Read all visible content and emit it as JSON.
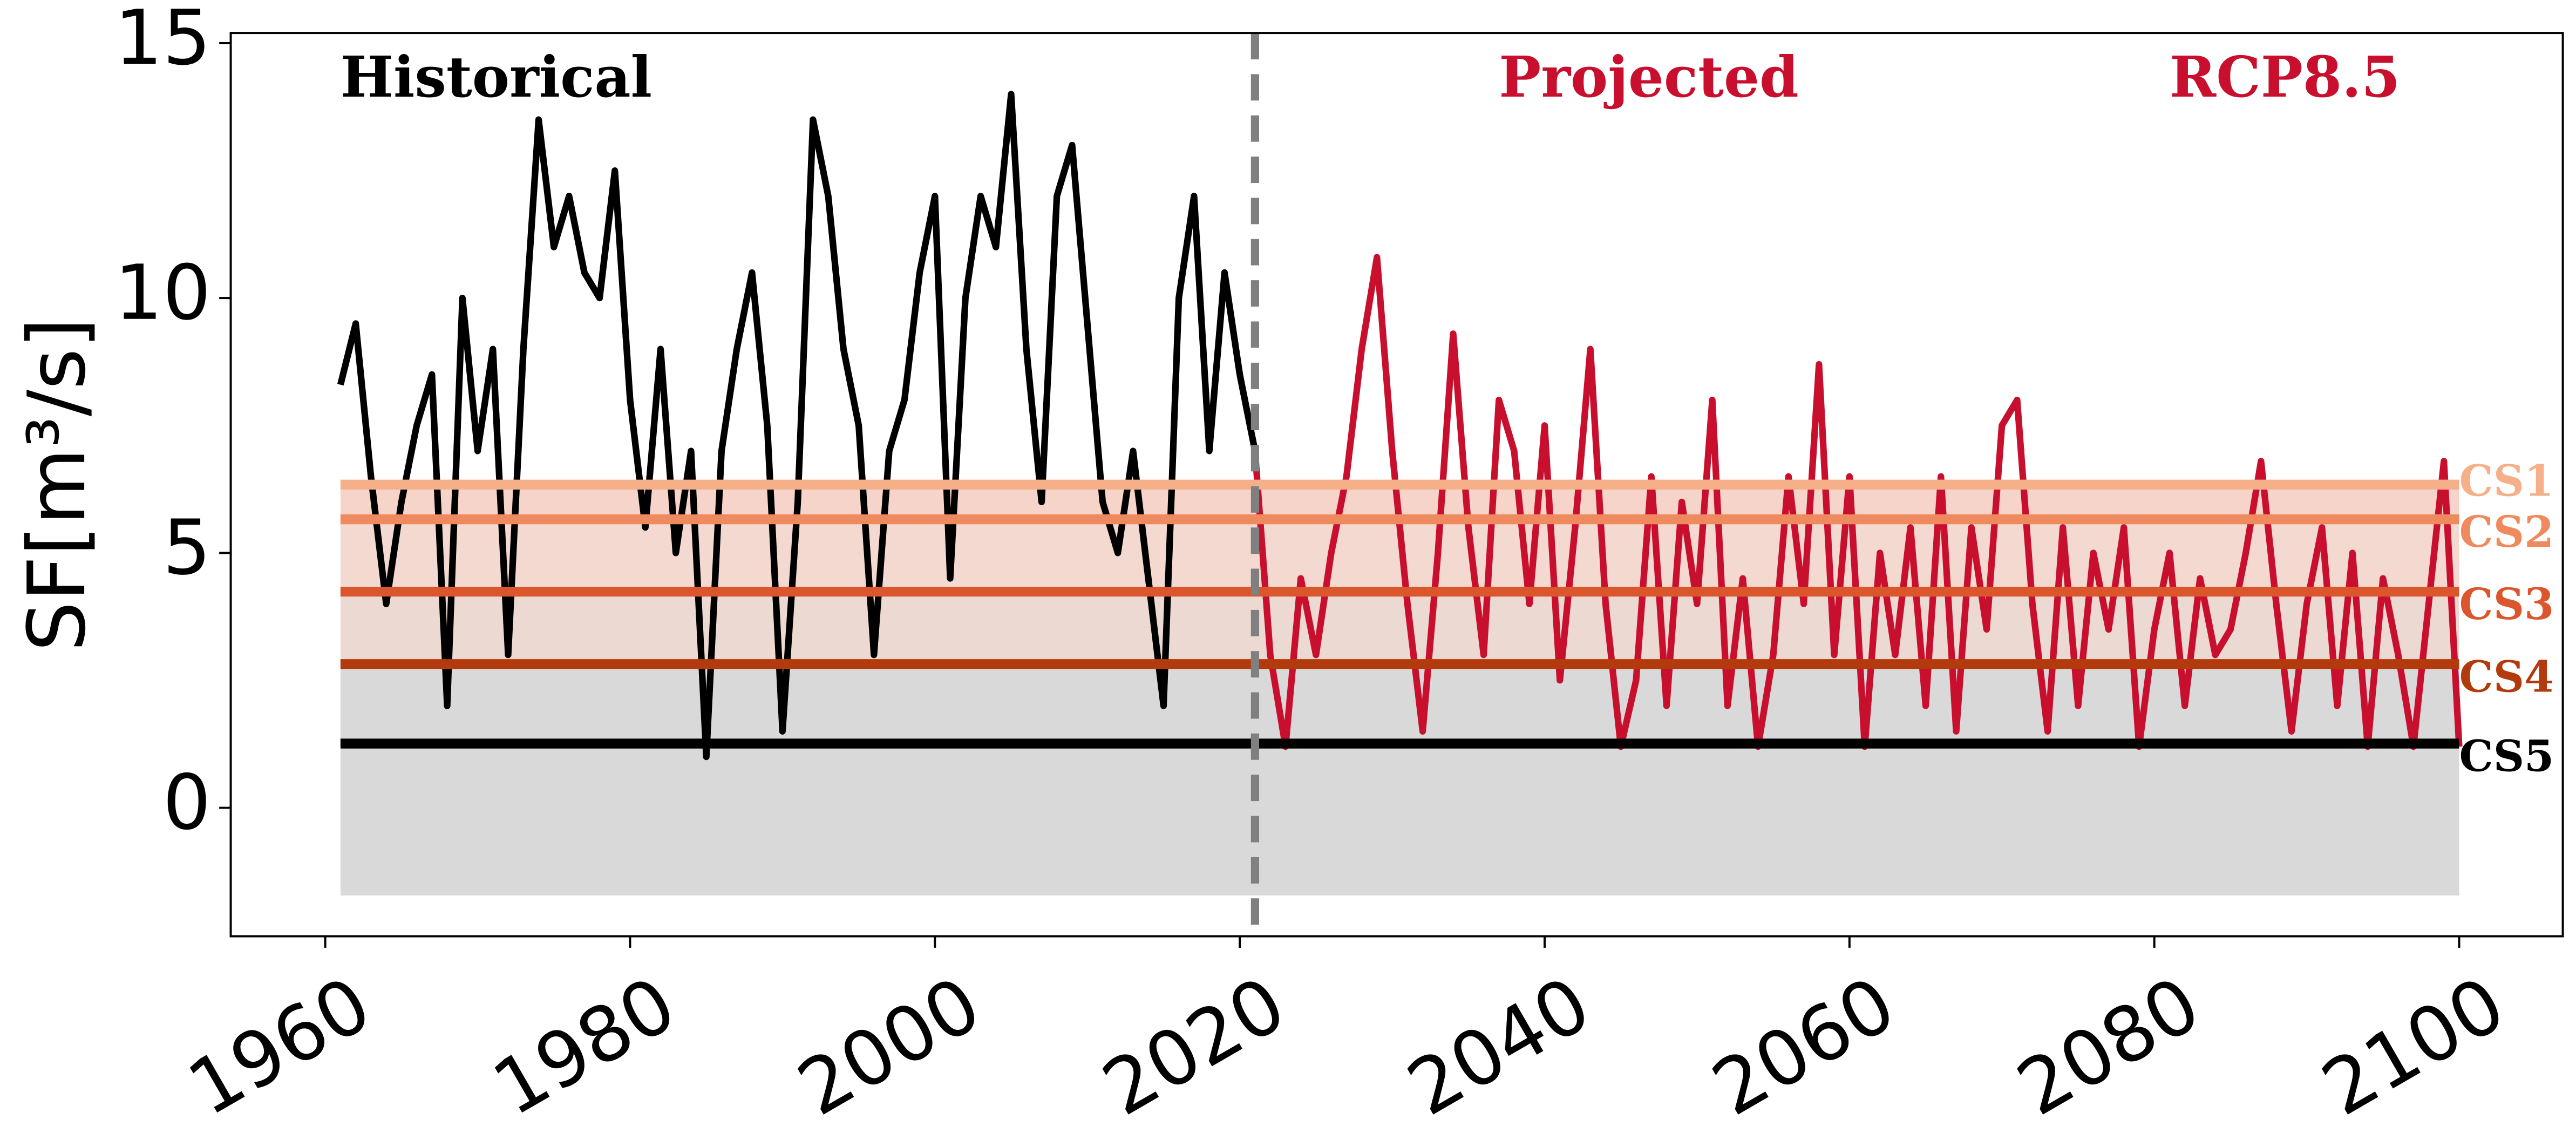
{
  "chart_data": {
    "type": "line",
    "y_label": "SF[m³/s]",
    "annotations": [
      {
        "text": "Historical",
        "x": 1961,
        "color": "#000000"
      },
      {
        "text": "Projected",
        "x": 2037,
        "color": "#c8102e"
      },
      {
        "text": "RCP8.5",
        "x": 2081,
        "color": "#c8102e"
      }
    ],
    "xlim": [
      1953.8,
      2106.8
    ],
    "ylim": [
      -2.52,
      15.2
    ],
    "xticks": [
      1960,
      1980,
      2000,
      2020,
      2040,
      2060,
      2080,
      2100
    ],
    "yticks": [
      0,
      5,
      10,
      15
    ],
    "grid": false,
    "band_floor": -1.72,
    "band_floor_color": "#d9d9d9",
    "thresholds": [
      {
        "name": "CS1",
        "value": 6.34,
        "color": "#f5b08a",
        "band_color": "#fbe5dc"
      },
      {
        "name": "CS2",
        "value": 5.66,
        "color": "#ef8a5f",
        "band_color": "#f6d4c9"
      },
      {
        "name": "CS3",
        "value": 4.24,
        "color": "#db562c",
        "band_color": "#f3d9cf"
      },
      {
        "name": "CS4",
        "value": 2.82,
        "color": "#b33a0c",
        "band_color": "#ebd9d2"
      },
      {
        "name": "CS5",
        "value": 1.26,
        "color": "#000000",
        "band_color": "#d9d9d9"
      }
    ],
    "divider_color": "#808080",
    "series": [
      {
        "name": "Historical",
        "color": "#000000",
        "x": [
          1961,
          1962,
          1963,
          1964,
          1965,
          1966,
          1967,
          1968,
          1969,
          1970,
          1971,
          1972,
          1973,
          1974,
          1975,
          1976,
          1977,
          1978,
          1979,
          1980,
          1981,
          1982,
          1983,
          1984,
          1985,
          1986,
          1987,
          1988,
          1989,
          1990,
          1991,
          1992,
          1993,
          1994,
          1995,
          1996,
          1997,
          1998,
          1999,
          2000,
          2001,
          2002,
          2003,
          2004,
          2005,
          2006,
          2007,
          2008,
          2009,
          2010,
          2011,
          2012,
          2013,
          2014,
          2015,
          2016,
          2017,
          2018,
          2019,
          2020,
          2021
        ],
        "values": [
          8.3,
          9.5,
          6.5,
          4.0,
          6.0,
          7.5,
          8.5,
          2.0,
          10.0,
          7.0,
          9.0,
          3.0,
          9.0,
          13.5,
          11.0,
          12.0,
          10.5,
          10.0,
          12.5,
          8.0,
          5.5,
          9.0,
          5.0,
          7.0,
          1.0,
          7.0,
          9.0,
          10.5,
          7.5,
          1.5,
          6.0,
          13.5,
          12.0,
          9.0,
          7.5,
          3.0,
          7.0,
          8.0,
          10.5,
          12.0,
          4.5,
          10.0,
          12.0,
          11.0,
          14.0,
          9.0,
          6.0,
          12.0,
          13.0,
          9.5,
          6.0,
          5.0,
          7.0,
          4.5,
          2.0,
          10.0,
          12.0,
          7.0,
          10.5,
          8.5,
          7.0
        ]
      },
      {
        "name": "Projected",
        "color": "#c8102e",
        "x": [
          2021,
          2022,
          2023,
          2024,
          2025,
          2026,
          2027,
          2028,
          2029,
          2030,
          2031,
          2032,
          2033,
          2034,
          2035,
          2036,
          2037,
          2038,
          2039,
          2040,
          2041,
          2042,
          2043,
          2044,
          2045,
          2046,
          2047,
          2048,
          2049,
          2050,
          2051,
          2052,
          2053,
          2054,
          2055,
          2056,
          2057,
          2058,
          2059,
          2060,
          2061,
          2062,
          2063,
          2064,
          2065,
          2066,
          2067,
          2068,
          2069,
          2070,
          2071,
          2072,
          2073,
          2074,
          2075,
          2076,
          2077,
          2078,
          2079,
          2080,
          2081,
          2082,
          2083,
          2084,
          2085,
          2086,
          2087,
          2088,
          2089,
          2090,
          2091,
          2092,
          2093,
          2094,
          2095,
          2096,
          2097,
          2098,
          2099,
          2100
        ],
        "values": [
          7.0,
          3.0,
          1.2,
          4.5,
          3.0,
          5.0,
          6.5,
          9.0,
          10.8,
          7.0,
          4.0,
          1.5,
          5.0,
          9.3,
          5.5,
          3.0,
          8.0,
          7.0,
          4.0,
          7.5,
          2.5,
          5.5,
          9.0,
          4.0,
          1.2,
          2.5,
          6.5,
          2.0,
          6.0,
          4.0,
          8.0,
          2.0,
          4.5,
          1.2,
          3.0,
          6.5,
          4.0,
          8.7,
          3.0,
          6.5,
          1.2,
          5.0,
          3.0,
          5.5,
          2.0,
          6.5,
          1.5,
          5.5,
          3.5,
          7.5,
          8.0,
          4.0,
          1.5,
          5.5,
          2.0,
          5.0,
          3.5,
          5.5,
          1.2,
          3.5,
          5.0,
          2.0,
          4.5,
          3.0,
          3.5,
          5.0,
          6.8,
          4.0,
          1.5,
          4.0,
          5.5,
          2.0,
          5.0,
          1.2,
          4.5,
          3.0,
          1.2,
          4.0,
          6.8,
          1.2
        ]
      }
    ]
  }
}
